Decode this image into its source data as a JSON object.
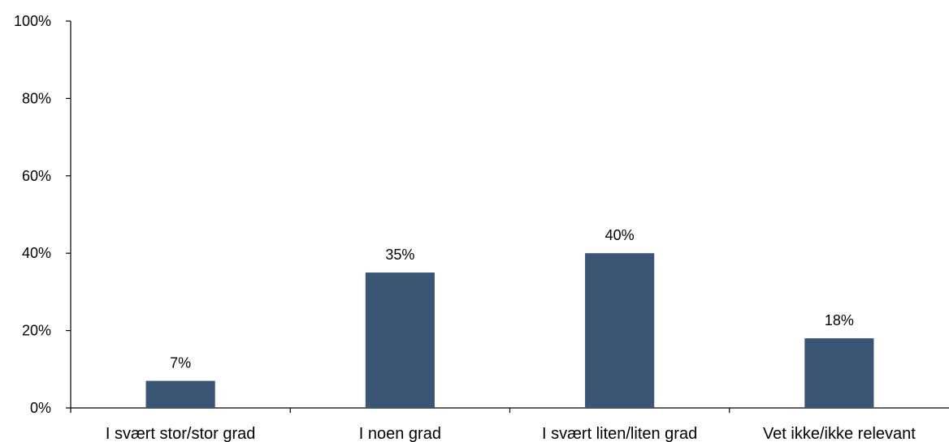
{
  "chart_data": {
    "type": "bar",
    "categories": [
      "I svært stor/stor grad",
      "I noen grad",
      "I svært liten/liten grad",
      "Vet ikke/ikke relevant"
    ],
    "values": [
      7,
      35,
      40,
      18
    ],
    "value_labels": [
      "7%",
      "35%",
      "40%",
      "18%"
    ],
    "ylim": [
      0,
      100
    ],
    "yticks": [
      0,
      20,
      40,
      60,
      80,
      100
    ],
    "ytick_labels": [
      "0%",
      "20%",
      "40%",
      "60%",
      "80%",
      "100%"
    ],
    "title": "",
    "xlabel": "",
    "ylabel": "",
    "bar_color": "#3b5675",
    "grid": false,
    "legend": "none"
  }
}
